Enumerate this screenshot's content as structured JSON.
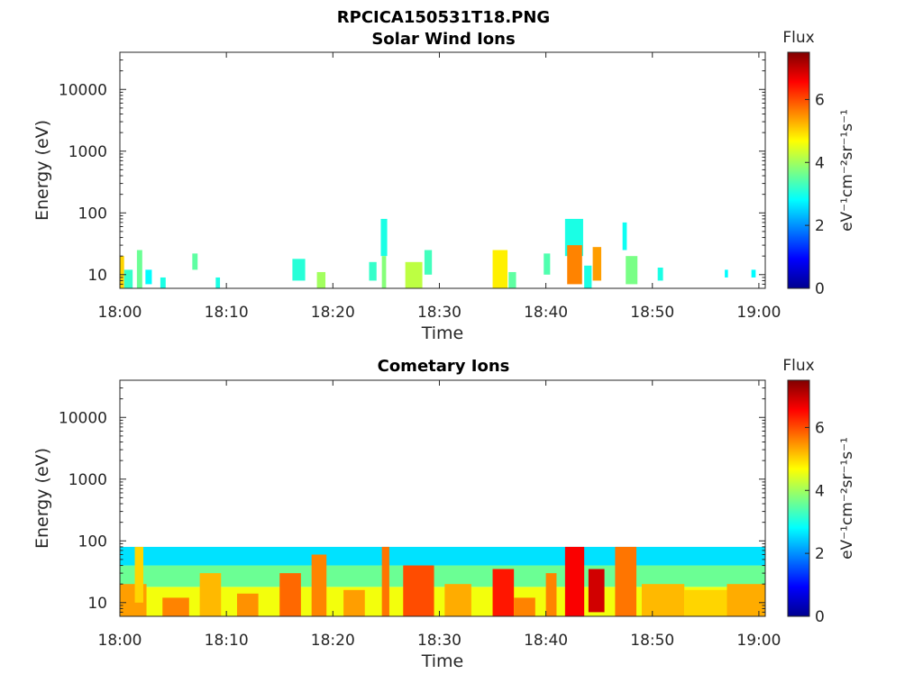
{
  "figure_title": "RPCICA150531T18.PNG",
  "colormap": "jet",
  "chart_data": [
    {
      "type": "heatmap",
      "title": "Solar Wind Ions",
      "xlabel": "Time",
      "ylabel": "Energy (eV)",
      "x_ticks": [
        "18:00",
        "18:10",
        "18:20",
        "18:30",
        "18:40",
        "18:50",
        "19:00"
      ],
      "x_range_minutes": [
        0,
        60.6
      ],
      "y_scale": "log",
      "y_ticks": [
        "10",
        "100",
        "1000",
        "10000"
      ],
      "y_range": [
        6,
        40000
      ],
      "colorbar": {
        "label": "Flux",
        "units": "eV⁻¹cm⁻²sr⁻¹s⁻¹",
        "range": [
          0,
          7.5
        ],
        "ticks": [
          "0",
          "2",
          "4",
          "6"
        ]
      },
      "blobs": [
        {
          "t0": 0.0,
          "t1": 0.4,
          "e_lo": 6,
          "e_hi": 20,
          "value": 5.0
        },
        {
          "t0": 0.4,
          "t1": 1.2,
          "e_lo": 6,
          "e_hi": 12,
          "value": 3.2
        },
        {
          "t0": 1.6,
          "t1": 2.1,
          "e_lo": 6,
          "e_hi": 25,
          "value": 3.6
        },
        {
          "t0": 2.4,
          "t1": 3.0,
          "e_lo": 7,
          "e_hi": 12,
          "value": 2.8
        },
        {
          "t0": 3.8,
          "t1": 4.3,
          "e_lo": 6,
          "e_hi": 9,
          "value": 3.0
        },
        {
          "t0": 6.8,
          "t1": 7.3,
          "e_lo": 12,
          "e_hi": 22,
          "value": 3.5
        },
        {
          "t0": 9.0,
          "t1": 9.4,
          "e_lo": 6,
          "e_hi": 9,
          "value": 3.0
        },
        {
          "t0": 16.2,
          "t1": 17.4,
          "e_lo": 8,
          "e_hi": 18,
          "value": 3.1
        },
        {
          "t0": 18.5,
          "t1": 19.3,
          "e_lo": 6,
          "e_hi": 11,
          "value": 4.0
        },
        {
          "t0": 23.4,
          "t1": 24.1,
          "e_lo": 8,
          "e_hi": 16,
          "value": 3.2
        },
        {
          "t0": 24.5,
          "t1": 25.1,
          "e_lo": 20,
          "e_hi": 80,
          "value": 3.0
        },
        {
          "t0": 24.6,
          "t1": 25.0,
          "e_lo": 6,
          "e_hi": 20,
          "value": 3.8
        },
        {
          "t0": 26.8,
          "t1": 28.4,
          "e_lo": 6,
          "e_hi": 16,
          "value": 4.2
        },
        {
          "t0": 28.6,
          "t1": 29.3,
          "e_lo": 10,
          "e_hi": 25,
          "value": 3.3
        },
        {
          "t0": 35.0,
          "t1": 36.4,
          "e_lo": 6,
          "e_hi": 25,
          "value": 4.8
        },
        {
          "t0": 36.5,
          "t1": 37.2,
          "e_lo": 6,
          "e_hi": 11,
          "value": 3.5
        },
        {
          "t0": 39.8,
          "t1": 40.4,
          "e_lo": 10,
          "e_hi": 22,
          "value": 3.4
        },
        {
          "t0": 41.8,
          "t1": 43.5,
          "e_lo": 20,
          "e_hi": 80,
          "value": 3.0
        },
        {
          "t0": 42.0,
          "t1": 43.4,
          "e_lo": 7,
          "e_hi": 30,
          "value": 5.6
        },
        {
          "t0": 43.6,
          "t1": 44.3,
          "e_lo": 6,
          "e_hi": 14,
          "value": 3.0
        },
        {
          "t0": 44.4,
          "t1": 45.2,
          "e_lo": 8,
          "e_hi": 28,
          "value": 5.4
        },
        {
          "t0": 47.2,
          "t1": 47.6,
          "e_lo": 25,
          "e_hi": 70,
          "value": 2.9
        },
        {
          "t0": 47.5,
          "t1": 48.6,
          "e_lo": 7,
          "e_hi": 20,
          "value": 3.7
        },
        {
          "t0": 50.5,
          "t1": 51.0,
          "e_lo": 8,
          "e_hi": 13,
          "value": 3.0
        },
        {
          "t0": 56.8,
          "t1": 57.1,
          "e_lo": 9,
          "e_hi": 12,
          "value": 2.8
        },
        {
          "t0": 59.3,
          "t1": 59.7,
          "e_lo": 9,
          "e_hi": 12,
          "value": 2.8
        }
      ]
    },
    {
      "type": "heatmap",
      "title": "Cometary Ions",
      "xlabel": "Time",
      "ylabel": "Energy (eV)",
      "x_ticks": [
        "18:00",
        "18:10",
        "18:20",
        "18:30",
        "18:40",
        "18:50",
        "19:00"
      ],
      "x_range_minutes": [
        0,
        60.6
      ],
      "y_scale": "log",
      "y_ticks": [
        "10",
        "100",
        "1000",
        "10000"
      ],
      "y_range": [
        6,
        40000
      ],
      "colorbar": {
        "label": "Flux",
        "units": "eV⁻¹cm⁻²sr⁻¹s⁻¹",
        "range": [
          0,
          7.5
        ],
        "ticks": [
          "0",
          "2",
          "4",
          "6"
        ]
      },
      "blobs": [
        {
          "t0": 0.0,
          "t1": 60.6,
          "e_lo": 6,
          "e_hi": 18,
          "value": 4.6
        },
        {
          "t0": 0.0,
          "t1": 60.6,
          "e_lo": 18,
          "e_hi": 40,
          "value": 3.6
        },
        {
          "t0": 0.0,
          "t1": 60.6,
          "e_lo": 40,
          "e_hi": 80,
          "value": 2.6
        },
        {
          "t0": 0.0,
          "t1": 2.5,
          "e_lo": 6,
          "e_hi": 20,
          "value": 5.4
        },
        {
          "t0": 1.4,
          "t1": 2.2,
          "e_lo": 10,
          "e_hi": 80,
          "value": 5.0
        },
        {
          "t0": 4.0,
          "t1": 6.5,
          "e_lo": 6,
          "e_hi": 12,
          "value": 5.6
        },
        {
          "t0": 7.5,
          "t1": 9.5,
          "e_lo": 6,
          "e_hi": 30,
          "value": 5.2
        },
        {
          "t0": 11.0,
          "t1": 13.0,
          "e_lo": 6,
          "e_hi": 14,
          "value": 5.5
        },
        {
          "t0": 15.0,
          "t1": 17.0,
          "e_lo": 6,
          "e_hi": 30,
          "value": 5.8
        },
        {
          "t0": 18.0,
          "t1": 19.4,
          "e_lo": 6,
          "e_hi": 60,
          "value": 5.6
        },
        {
          "t0": 21.0,
          "t1": 23.0,
          "e_lo": 6,
          "e_hi": 16,
          "value": 5.4
        },
        {
          "t0": 24.6,
          "t1": 25.3,
          "e_lo": 6,
          "e_hi": 80,
          "value": 5.7
        },
        {
          "t0": 26.6,
          "t1": 29.5,
          "e_lo": 6,
          "e_hi": 40,
          "value": 6.0
        },
        {
          "t0": 30.5,
          "t1": 33.0,
          "e_lo": 6,
          "e_hi": 20,
          "value": 5.3
        },
        {
          "t0": 35.0,
          "t1": 37.0,
          "e_lo": 6,
          "e_hi": 35,
          "value": 6.4
        },
        {
          "t0": 37.0,
          "t1": 39.0,
          "e_lo": 6,
          "e_hi": 12,
          "value": 5.6
        },
        {
          "t0": 40.0,
          "t1": 41.0,
          "e_lo": 6,
          "e_hi": 30,
          "value": 5.6
        },
        {
          "t0": 41.8,
          "t1": 43.6,
          "e_lo": 6,
          "e_hi": 80,
          "value": 6.6
        },
        {
          "t0": 44.0,
          "t1": 45.5,
          "e_lo": 7,
          "e_hi": 35,
          "value": 6.9
        },
        {
          "t0": 46.5,
          "t1": 48.5,
          "e_lo": 6,
          "e_hi": 80,
          "value": 5.7
        },
        {
          "t0": 49.0,
          "t1": 53.0,
          "e_lo": 6,
          "e_hi": 20,
          "value": 5.2
        },
        {
          "t0": 53.0,
          "t1": 57.0,
          "e_lo": 6,
          "e_hi": 16,
          "value": 5.0
        },
        {
          "t0": 57.0,
          "t1": 60.6,
          "e_lo": 6,
          "e_hi": 20,
          "value": 5.3
        }
      ]
    }
  ]
}
